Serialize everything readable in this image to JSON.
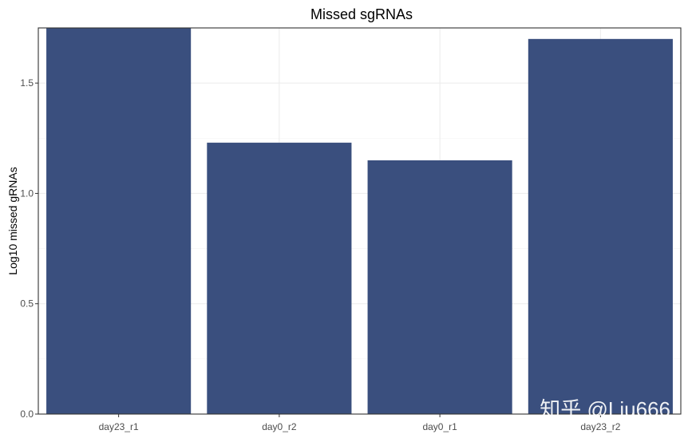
{
  "chart_data": {
    "type": "bar",
    "title": "Missed sgRNAs",
    "xlabel": "",
    "ylabel": "Log10 missed gRNAs",
    "categories": [
      "day23_r1",
      "day0_r2",
      "day0_r1",
      "day23_r2"
    ],
    "values": [
      1.76,
      1.23,
      1.15,
      1.7
    ],
    "ylim": [
      0,
      1.75
    ],
    "yticks": [
      0.0,
      0.5,
      1.0,
      1.5
    ],
    "ytick_labels": [
      "0.0",
      "0.5",
      "1.0",
      "1.5"
    ],
    "bar_color": "#3a4f7e",
    "grid": true,
    "legend": "none"
  },
  "watermark": "知乎 @Liu666"
}
